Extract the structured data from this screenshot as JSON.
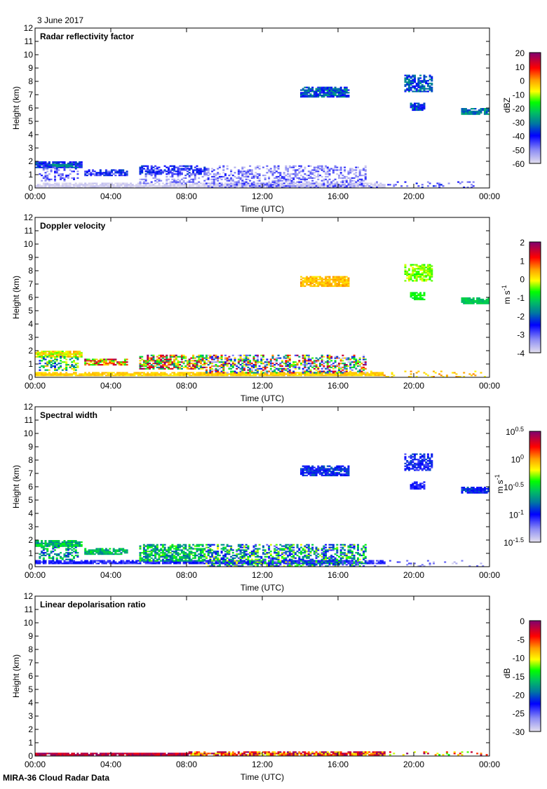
{
  "date_label": "3 June 2017",
  "footer": "MIRA-36 Cloud Radar Data",
  "chart_data": [
    {
      "type": "heatmap",
      "title": "Radar reflectivity factor",
      "xlabel": "Time (UTC)",
      "ylabel": "Height (km)",
      "xlim": [
        0,
        24
      ],
      "ylim": [
        0,
        12
      ],
      "x_ticks": [
        "00:00",
        "04:00",
        "08:00",
        "12:00",
        "16:00",
        "20:00",
        "00:00"
      ],
      "y_ticks": [
        "0",
        "1",
        "2",
        "3",
        "4",
        "5",
        "6",
        "7",
        "8",
        "9",
        "10",
        "11",
        "12"
      ],
      "colorbar": {
        "unit": "dBZ",
        "unit_sup": "",
        "range": [
          -60,
          20
        ],
        "ticks": [
          "20",
          "10",
          "0",
          "-10",
          "-20",
          "-30",
          "-40",
          "-50",
          "-60"
        ]
      },
      "features": [
        {
          "t": [
            0,
            2.5
          ],
          "h": [
            1.5,
            2.0
          ],
          "v": -38,
          "spread": 8,
          "density": 0.95
        },
        {
          "t": [
            0.9,
            2.0
          ],
          "h": [
            1.6,
            1.8
          ],
          "v": -28,
          "spread": 4,
          "density": 0.9
        },
        {
          "t": [
            0.2,
            2.3
          ],
          "h": [
            0.5,
            1.6
          ],
          "v": -48,
          "spread": 7,
          "density": 0.35
        },
        {
          "t": [
            0,
            18.5
          ],
          "h": [
            0,
            0.35
          ],
          "v": -58,
          "spread": 2,
          "density": 0.9
        },
        {
          "t": [
            2.6,
            4.9
          ],
          "h": [
            0.9,
            1.4
          ],
          "v": -42,
          "spread": 8,
          "density": 0.8
        },
        {
          "t": [
            5.5,
            9.0
          ],
          "h": [
            1.0,
            1.7
          ],
          "v": -42,
          "spread": 8,
          "density": 0.75
        },
        {
          "t": [
            5.5,
            9.0
          ],
          "h": [
            0.3,
            1.1
          ],
          "v": -50,
          "spread": 6,
          "density": 0.3
        },
        {
          "t": [
            9.0,
            17.5
          ],
          "h": [
            0,
            1.7
          ],
          "v": -50,
          "spread": 8,
          "density": 0.45
        },
        {
          "t": [
            17.5,
            24
          ],
          "h": [
            0,
            0.5
          ],
          "v": -45,
          "spread": 8,
          "density": 0.12
        },
        {
          "t": [
            14.0,
            16.6
          ],
          "h": [
            6.8,
            7.6
          ],
          "v": -35,
          "spread": 8,
          "density": 0.85
        },
        {
          "t": [
            19.5,
            21.0
          ],
          "h": [
            7.2,
            8.5
          ],
          "v": -35,
          "spread": 8,
          "density": 0.7
        },
        {
          "t": [
            19.8,
            20.6
          ],
          "h": [
            5.8,
            6.4
          ],
          "v": -35,
          "spread": 8,
          "density": 0.9
        },
        {
          "t": [
            22.5,
            24
          ],
          "h": [
            5.5,
            6.0
          ],
          "v": -30,
          "spread": 6,
          "density": 0.9
        }
      ]
    },
    {
      "type": "heatmap",
      "title": "Doppler velocity",
      "xlabel": "Time (UTC)",
      "ylabel": "Height (km)",
      "xlim": [
        0,
        24
      ],
      "ylim": [
        0,
        12
      ],
      "x_ticks": [
        "00:00",
        "04:00",
        "08:00",
        "12:00",
        "16:00",
        "20:00",
        "00:00"
      ],
      "y_ticks": [
        "0",
        "1",
        "2",
        "3",
        "4",
        "5",
        "6",
        "7",
        "8",
        "9",
        "10",
        "11",
        "12"
      ],
      "colorbar": {
        "unit": "m s",
        "unit_sup": "-1",
        "range": [
          -4,
          2
        ],
        "ticks": [
          "2",
          "1",
          "0",
          "-1",
          "-2",
          "-3",
          "-4"
        ]
      },
      "features": [
        {
          "t": [
            0,
            2.5
          ],
          "h": [
            1.5,
            2.0
          ],
          "v": 0.0,
          "spread": 0.6,
          "density": 0.95
        },
        {
          "t": [
            0.2,
            2.3
          ],
          "h": [
            0.5,
            1.6
          ],
          "v": -1.0,
          "spread": 1.5,
          "density": 0.45
        },
        {
          "t": [
            0,
            18.5
          ],
          "h": [
            0.1,
            0.35
          ],
          "v": 0.2,
          "spread": 0.2,
          "density": 0.95
        },
        {
          "t": [
            2.6,
            4.9
          ],
          "h": [
            0.9,
            1.4
          ],
          "v": 0.3,
          "spread": 1.5,
          "density": 0.8
        },
        {
          "t": [
            5.5,
            9.0
          ],
          "h": [
            0.6,
            1.7
          ],
          "v": 0.2,
          "spread": 2.0,
          "density": 0.7
        },
        {
          "t": [
            9.0,
            17.5
          ],
          "h": [
            0.3,
            1.7
          ],
          "v": -1.0,
          "spread": 3.0,
          "density": 0.55
        },
        {
          "t": [
            17.5,
            24
          ],
          "h": [
            0,
            0.5
          ],
          "v": 0.3,
          "spread": 0.4,
          "density": 0.15
        },
        {
          "t": [
            14.0,
            16.6
          ],
          "h": [
            6.8,
            7.6
          ],
          "v": 0.3,
          "spread": 0.3,
          "density": 0.85
        },
        {
          "t": [
            19.5,
            21.0
          ],
          "h": [
            7.2,
            8.5
          ],
          "v": -0.4,
          "spread": 0.3,
          "density": 0.7
        },
        {
          "t": [
            19.8,
            20.6
          ],
          "h": [
            5.8,
            6.4
          ],
          "v": -0.8,
          "spread": 0.2,
          "density": 0.9
        },
        {
          "t": [
            22.5,
            24
          ],
          "h": [
            5.5,
            6.0
          ],
          "v": -1.2,
          "spread": 0.2,
          "density": 0.9
        }
      ]
    },
    {
      "type": "heatmap",
      "title": "Spectral width",
      "xlabel": "Time (UTC)",
      "ylabel": "Height (km)",
      "xlim": [
        0,
        24
      ],
      "ylim": [
        0,
        12
      ],
      "x_ticks": [
        "00:00",
        "04:00",
        "08:00",
        "12:00",
        "16:00",
        "20:00",
        "00:00"
      ],
      "y_ticks": [
        "0",
        "1",
        "2",
        "3",
        "4",
        "5",
        "6",
        "7",
        "8",
        "9",
        "10",
        "11",
        "12"
      ],
      "colorbar": {
        "unit": "m s",
        "unit_sup": "-1",
        "range": [
          -1.5,
          0.5
        ],
        "log_base": "10",
        "ticks": [
          "0.5",
          "0",
          "-0.5",
          "-1",
          "-1.5"
        ]
      },
      "features": [
        {
          "t": [
            0,
            2.5
          ],
          "h": [
            1.5,
            2.0
          ],
          "v": -0.6,
          "spread": 0.2,
          "density": 0.95
        },
        {
          "t": [
            0.2,
            2.3
          ],
          "h": [
            0.5,
            1.6
          ],
          "v": -0.7,
          "spread": 0.3,
          "density": 0.4
        },
        {
          "t": [
            0,
            18.5
          ],
          "h": [
            0.2,
            0.45
          ],
          "v": -1.05,
          "spread": 0.1,
          "density": 0.9
        },
        {
          "t": [
            2.6,
            4.9
          ],
          "h": [
            0.9,
            1.4
          ],
          "v": -0.6,
          "spread": 0.2,
          "density": 0.8
        },
        {
          "t": [
            5.5,
            9.0
          ],
          "h": [
            0.4,
            1.7
          ],
          "v": -0.6,
          "spread": 0.3,
          "density": 0.7
        },
        {
          "t": [
            9.0,
            17.5
          ],
          "h": [
            0,
            1.7
          ],
          "v": -0.7,
          "spread": 0.5,
          "density": 0.55
        },
        {
          "t": [
            17.5,
            24
          ],
          "h": [
            0,
            0.5
          ],
          "v": -1.3,
          "spread": 0.2,
          "density": 0.15
        },
        {
          "t": [
            14.0,
            16.6
          ],
          "h": [
            6.8,
            7.6
          ],
          "v": -0.95,
          "spread": 0.15,
          "density": 0.85
        },
        {
          "t": [
            19.5,
            21.0
          ],
          "h": [
            7.2,
            8.5
          ],
          "v": -1.0,
          "spread": 0.15,
          "density": 0.7
        },
        {
          "t": [
            19.8,
            20.6
          ],
          "h": [
            5.8,
            6.4
          ],
          "v": -1.05,
          "spread": 0.1,
          "density": 0.9
        },
        {
          "t": [
            22.5,
            24
          ],
          "h": [
            5.5,
            6.0
          ],
          "v": -0.95,
          "spread": 0.15,
          "density": 0.9
        }
      ]
    },
    {
      "type": "heatmap",
      "title": "Linear depolarisation ratio",
      "xlabel": "Time (UTC)",
      "ylabel": "Height (km)",
      "xlim": [
        0,
        24
      ],
      "ylim": [
        0,
        12
      ],
      "x_ticks": [
        "00:00",
        "04:00",
        "08:00",
        "12:00",
        "16:00",
        "20:00",
        "00:00"
      ],
      "y_ticks": [
        "0",
        "1",
        "2",
        "3",
        "4",
        "5",
        "6",
        "7",
        "8",
        "9",
        "10",
        "11",
        "12"
      ],
      "colorbar": {
        "unit": "dB",
        "unit_sup": "",
        "range": [
          -30,
          0
        ],
        "ticks": [
          "0",
          "-5",
          "-10",
          "-15",
          "-20",
          "-25",
          "-30"
        ]
      },
      "features": [
        {
          "t": [
            0,
            8.0
          ],
          "h": [
            0.05,
            0.25
          ],
          "v": -2,
          "spread": 2,
          "density": 0.95
        },
        {
          "t": [
            8.0,
            18.5
          ],
          "h": [
            0.05,
            0.3
          ],
          "v": -5,
          "spread": 6,
          "density": 0.9
        },
        {
          "t": [
            18.5,
            24
          ],
          "h": [
            0.05,
            0.3
          ],
          "v": -8,
          "spread": 8,
          "density": 0.15
        }
      ]
    }
  ]
}
